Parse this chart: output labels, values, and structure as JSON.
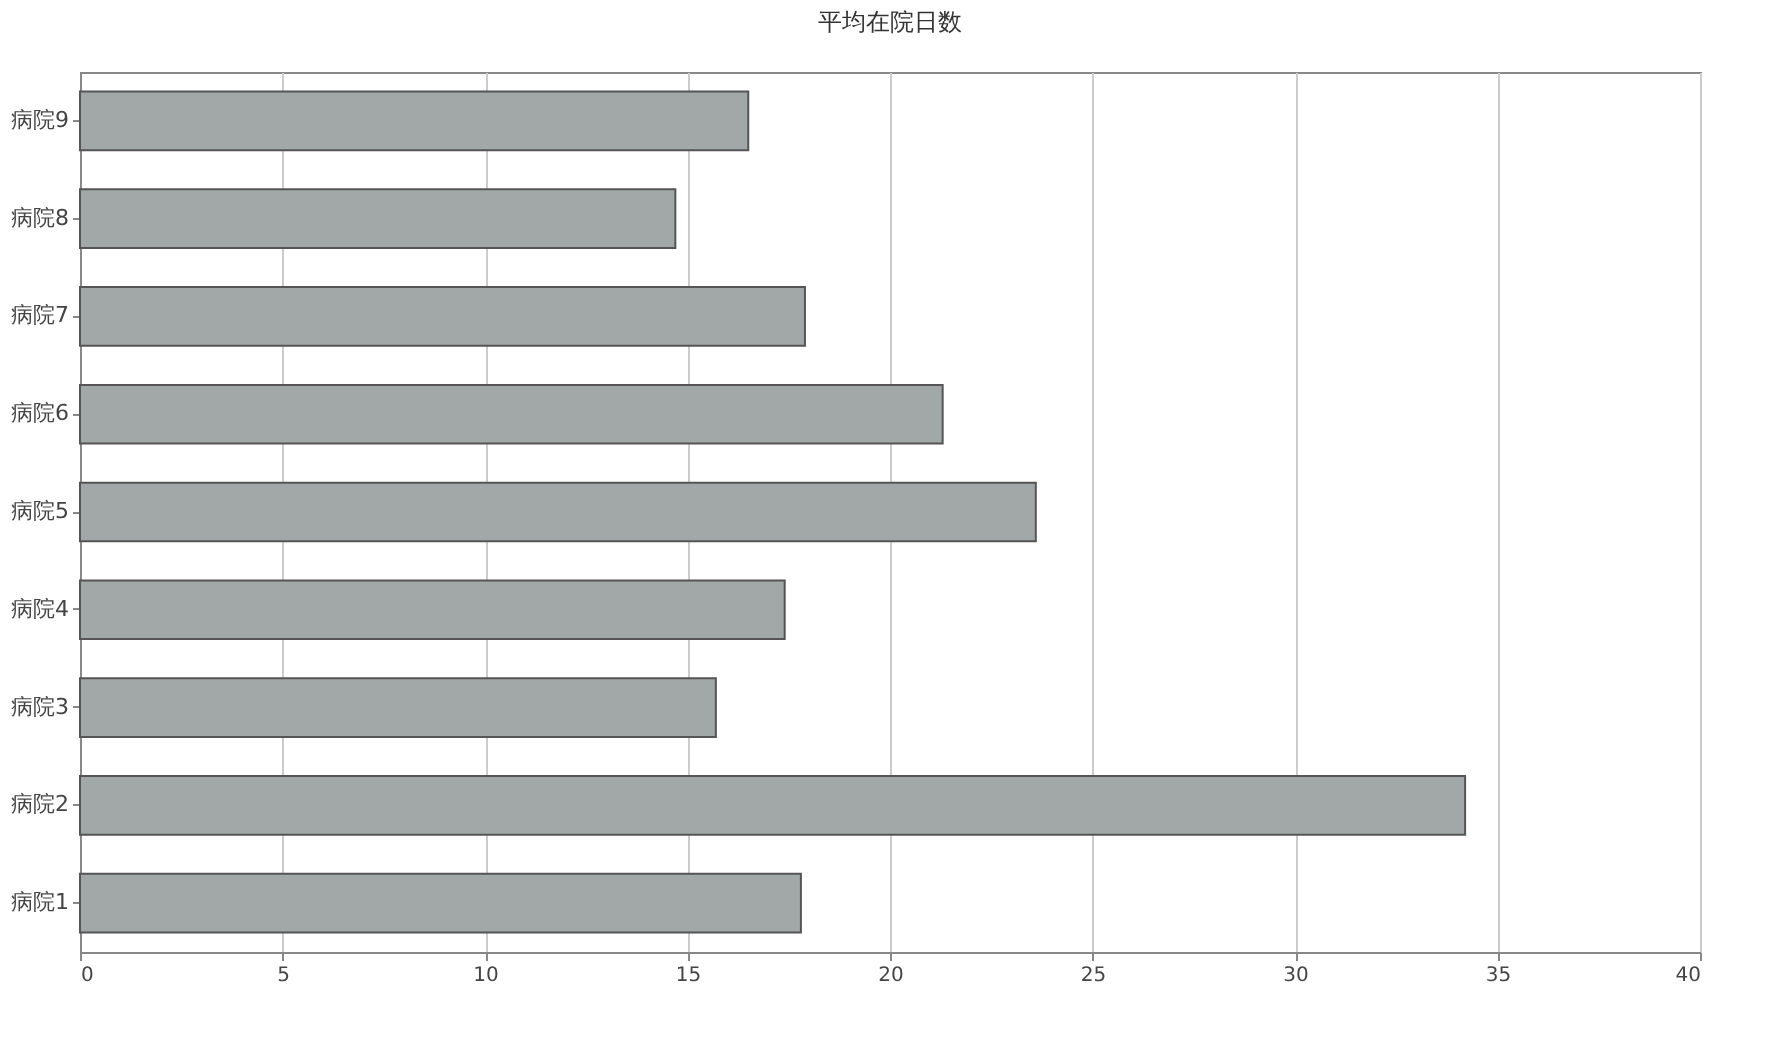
{
  "chart_data": {
    "type": "bar",
    "orientation": "horizontal",
    "title": "平均在院日数",
    "categories": [
      "病院9",
      "病院8",
      "病院7",
      "病院6",
      "病院5",
      "病院4",
      "病院3",
      "病院2",
      "病院1"
    ],
    "values": [
      16.5,
      14.7,
      17.9,
      21.3,
      23.6,
      17.4,
      15.7,
      34.2,
      17.8
    ],
    "color": "#a2a7a7",
    "xlim": [
      0,
      40
    ],
    "xticks": [
      0,
      5,
      10,
      15,
      20,
      25,
      30,
      35,
      40
    ],
    "grid": "x"
  }
}
